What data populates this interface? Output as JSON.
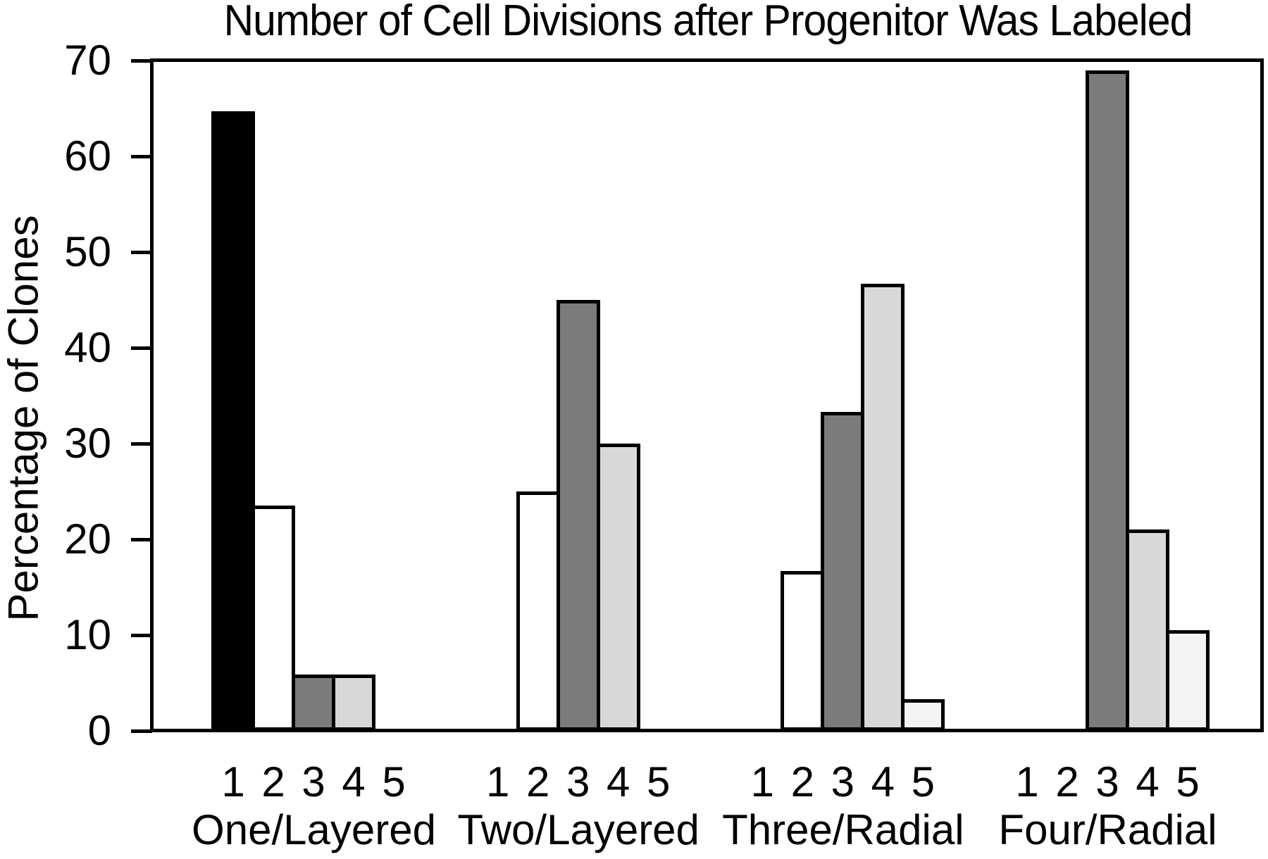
{
  "chart_data": {
    "type": "bar",
    "title": "Number of Cell Divisions after Progenitor Was Labeled",
    "ylabel": "Percentage of Clones",
    "ylim": [
      0,
      70
    ],
    "yticks": [
      0,
      10,
      20,
      30,
      40,
      50,
      60,
      70
    ],
    "grid": false,
    "legend": "none",
    "bar_series_labels": [
      "1",
      "2",
      "3",
      "4",
      "5"
    ],
    "bar_series_colors": [
      "#000000",
      "#ffffff",
      "#7b7b7b",
      "#d8d8d8",
      "#f3f3f3"
    ],
    "groups": [
      {
        "label": "One/Layered",
        "values": [
          64.7,
          23.5,
          5.9,
          5.9,
          0
        ]
      },
      {
        "label": "Two/Layered",
        "values": [
          0,
          25,
          45,
          30,
          0
        ]
      },
      {
        "label": "Three/Radial",
        "values": [
          0,
          16.7,
          33.3,
          46.7,
          3.3
        ]
      },
      {
        "label": "Four/Radial",
        "values": [
          0,
          0,
          69,
          21,
          10.5
        ]
      }
    ]
  }
}
